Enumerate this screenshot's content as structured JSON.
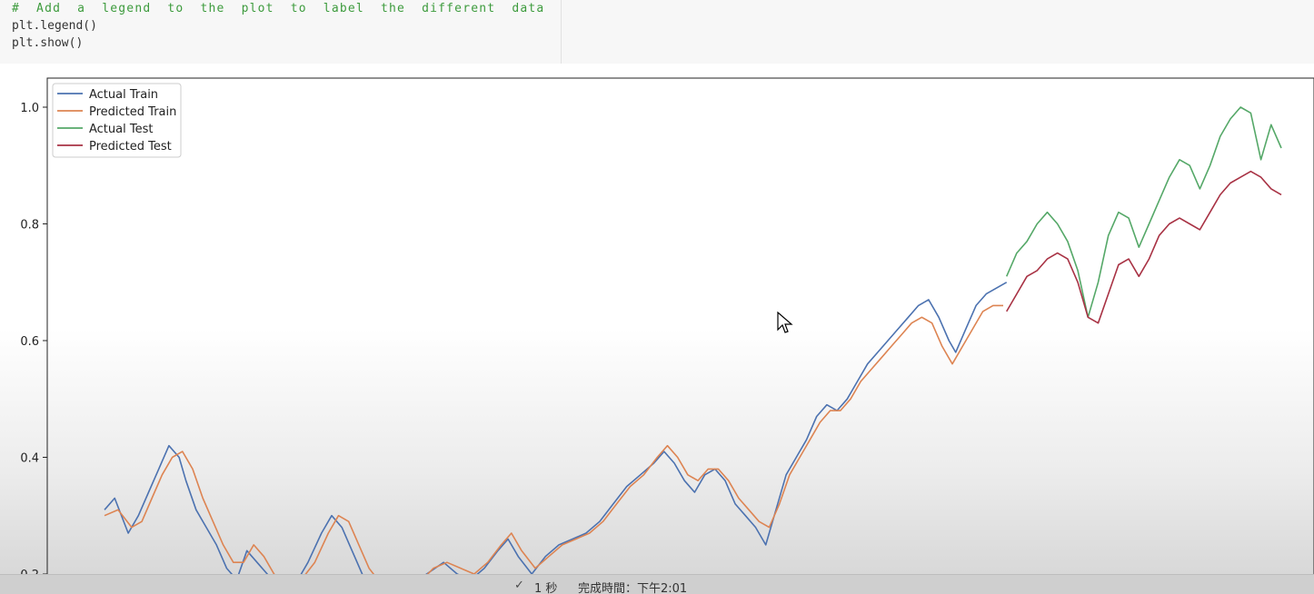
{
  "code_cell": {
    "lines": [
      "# Add a legend to the plot to label the different data series",
      "plt.legend()",
      "plt.show()"
    ]
  },
  "colors": {
    "actual_train": "#4c72b0",
    "predicted_train": "#dd8452",
    "actual_test": "#55a868",
    "predicted_test": "#a83244"
  },
  "chart_data": {
    "type": "line",
    "ylim": [
      0.2,
      1.05
    ],
    "y_ticks": [
      "0.2",
      "0.4",
      "0.6",
      "0.8",
      "1.0"
    ],
    "legend_position": "upper-left",
    "grid": false,
    "series": [
      {
        "name": "Actual Train",
        "color": "#4c72b0",
        "points": [
          [
            0,
            0.31
          ],
          [
            3,
            0.33
          ],
          [
            7,
            0.27
          ],
          [
            10,
            0.3
          ],
          [
            13,
            0.34
          ],
          [
            16,
            0.38
          ],
          [
            19,
            0.42
          ],
          [
            22,
            0.4
          ],
          [
            24,
            0.36
          ],
          [
            27,
            0.31
          ],
          [
            30,
            0.28
          ],
          [
            33,
            0.25
          ],
          [
            36,
            0.21
          ],
          [
            39,
            0.19
          ],
          [
            42,
            0.24
          ],
          [
            45,
            0.22
          ],
          [
            48,
            0.2
          ],
          [
            52,
            0.17
          ],
          [
            56,
            0.18
          ],
          [
            60,
            0.22
          ],
          [
            64,
            0.27
          ],
          [
            67,
            0.3
          ],
          [
            70,
            0.28
          ],
          [
            73,
            0.24
          ],
          [
            76,
            0.2
          ],
          [
            80,
            0.17
          ],
          [
            85,
            0.16
          ],
          [
            90,
            0.18
          ],
          [
            95,
            0.2
          ],
          [
            100,
            0.22
          ],
          [
            104,
            0.2
          ],
          [
            108,
            0.19
          ],
          [
            112,
            0.21
          ],
          [
            116,
            0.24
          ],
          [
            119,
            0.26
          ],
          [
            122,
            0.23
          ],
          [
            126,
            0.2
          ],
          [
            130,
            0.23
          ],
          [
            134,
            0.25
          ],
          [
            138,
            0.26
          ],
          [
            142,
            0.27
          ],
          [
            146,
            0.29
          ],
          [
            150,
            0.32
          ],
          [
            154,
            0.35
          ],
          [
            158,
            0.37
          ],
          [
            162,
            0.39
          ],
          [
            165,
            0.41
          ],
          [
            168,
            0.39
          ],
          [
            171,
            0.36
          ],
          [
            174,
            0.34
          ],
          [
            177,
            0.37
          ],
          [
            180,
            0.38
          ],
          [
            183,
            0.36
          ],
          [
            186,
            0.32
          ],
          [
            189,
            0.3
          ],
          [
            192,
            0.28
          ],
          [
            195,
            0.25
          ],
          [
            198,
            0.31
          ],
          [
            201,
            0.37
          ],
          [
            204,
            0.4
          ],
          [
            207,
            0.43
          ],
          [
            210,
            0.47
          ],
          [
            213,
            0.49
          ],
          [
            216,
            0.48
          ],
          [
            219,
            0.5
          ],
          [
            222,
            0.53
          ],
          [
            225,
            0.56
          ],
          [
            228,
            0.58
          ],
          [
            231,
            0.6
          ],
          [
            234,
            0.62
          ],
          [
            237,
            0.64
          ],
          [
            240,
            0.66
          ],
          [
            243,
            0.67
          ],
          [
            246,
            0.64
          ],
          [
            249,
            0.6
          ],
          [
            251,
            0.58
          ],
          [
            254,
            0.62
          ],
          [
            257,
            0.66
          ],
          [
            260,
            0.68
          ],
          [
            263,
            0.69
          ],
          [
            266,
            0.7
          ]
        ]
      },
      {
        "name": "Predicted Train",
        "color": "#dd8452",
        "points": [
          [
            0,
            0.3
          ],
          [
            4,
            0.31
          ],
          [
            8,
            0.28
          ],
          [
            11,
            0.29
          ],
          [
            14,
            0.33
          ],
          [
            17,
            0.37
          ],
          [
            20,
            0.4
          ],
          [
            23,
            0.41
          ],
          [
            26,
            0.38
          ],
          [
            29,
            0.33
          ],
          [
            32,
            0.29
          ],
          [
            35,
            0.25
          ],
          [
            38,
            0.22
          ],
          [
            41,
            0.22
          ],
          [
            44,
            0.25
          ],
          [
            47,
            0.23
          ],
          [
            50,
            0.2
          ],
          [
            54,
            0.18
          ],
          [
            58,
            0.19
          ],
          [
            62,
            0.22
          ],
          [
            66,
            0.27
          ],
          [
            69,
            0.3
          ],
          [
            72,
            0.29
          ],
          [
            75,
            0.25
          ],
          [
            78,
            0.21
          ],
          [
            82,
            0.18
          ],
          [
            87,
            0.17
          ],
          [
            92,
            0.18
          ],
          [
            97,
            0.21
          ],
          [
            101,
            0.22
          ],
          [
            105,
            0.21
          ],
          [
            109,
            0.2
          ],
          [
            113,
            0.22
          ],
          [
            117,
            0.25
          ],
          [
            120,
            0.27
          ],
          [
            123,
            0.24
          ],
          [
            127,
            0.21
          ],
          [
            131,
            0.23
          ],
          [
            135,
            0.25
          ],
          [
            139,
            0.26
          ],
          [
            143,
            0.27
          ],
          [
            147,
            0.29
          ],
          [
            151,
            0.32
          ],
          [
            155,
            0.35
          ],
          [
            159,
            0.37
          ],
          [
            163,
            0.4
          ],
          [
            166,
            0.42
          ],
          [
            169,
            0.4
          ],
          [
            172,
            0.37
          ],
          [
            175,
            0.36
          ],
          [
            178,
            0.38
          ],
          [
            181,
            0.38
          ],
          [
            184,
            0.36
          ],
          [
            187,
            0.33
          ],
          [
            190,
            0.31
          ],
          [
            193,
            0.29
          ],
          [
            196,
            0.28
          ],
          [
            199,
            0.32
          ],
          [
            202,
            0.37
          ],
          [
            205,
            0.4
          ],
          [
            208,
            0.43
          ],
          [
            211,
            0.46
          ],
          [
            214,
            0.48
          ],
          [
            217,
            0.48
          ],
          [
            220,
            0.5
          ],
          [
            223,
            0.53
          ],
          [
            226,
            0.55
          ],
          [
            229,
            0.57
          ],
          [
            232,
            0.59
          ],
          [
            235,
            0.61
          ],
          [
            238,
            0.63
          ],
          [
            241,
            0.64
          ],
          [
            244,
            0.63
          ],
          [
            247,
            0.59
          ],
          [
            250,
            0.56
          ],
          [
            253,
            0.59
          ],
          [
            256,
            0.62
          ],
          [
            259,
            0.65
          ],
          [
            262,
            0.66
          ],
          [
            265,
            0.66
          ]
        ]
      },
      {
        "name": "Actual Test",
        "color": "#55a868",
        "points": [
          [
            266,
            0.71
          ],
          [
            269,
            0.75
          ],
          [
            272,
            0.77
          ],
          [
            275,
            0.8
          ],
          [
            278,
            0.82
          ],
          [
            281,
            0.8
          ],
          [
            284,
            0.77
          ],
          [
            287,
            0.72
          ],
          [
            290,
            0.64
          ],
          [
            293,
            0.7
          ],
          [
            296,
            0.78
          ],
          [
            299,
            0.82
          ],
          [
            302,
            0.81
          ],
          [
            305,
            0.76
          ],
          [
            308,
            0.8
          ],
          [
            311,
            0.84
          ],
          [
            314,
            0.88
          ],
          [
            317,
            0.91
          ],
          [
            320,
            0.9
          ],
          [
            323,
            0.86
          ],
          [
            326,
            0.9
          ],
          [
            329,
            0.95
          ],
          [
            332,
            0.98
          ],
          [
            335,
            1.0
          ],
          [
            338,
            0.99
          ],
          [
            341,
            0.91
          ],
          [
            344,
            0.97
          ],
          [
            347,
            0.93
          ]
        ]
      },
      {
        "name": "Predicted Test",
        "color": "#a83244",
        "points": [
          [
            266,
            0.65
          ],
          [
            269,
            0.68
          ],
          [
            272,
            0.71
          ],
          [
            275,
            0.72
          ],
          [
            278,
            0.74
          ],
          [
            281,
            0.75
          ],
          [
            284,
            0.74
          ],
          [
            287,
            0.7
          ],
          [
            290,
            0.64
          ],
          [
            293,
            0.63
          ],
          [
            296,
            0.68
          ],
          [
            299,
            0.73
          ],
          [
            302,
            0.74
          ],
          [
            305,
            0.71
          ],
          [
            308,
            0.74
          ],
          [
            311,
            0.78
          ],
          [
            314,
            0.8
          ],
          [
            317,
            0.81
          ],
          [
            320,
            0.8
          ],
          [
            323,
            0.79
          ],
          [
            326,
            0.82
          ],
          [
            329,
            0.85
          ],
          [
            332,
            0.87
          ],
          [
            335,
            0.88
          ],
          [
            338,
            0.89
          ],
          [
            341,
            0.88
          ],
          [
            344,
            0.86
          ],
          [
            347,
            0.85
          ]
        ]
      }
    ]
  },
  "status_bar": {
    "check_icon": "✓",
    "duration": "1 秒",
    "finish_time": "完成時間：下午2:01"
  }
}
